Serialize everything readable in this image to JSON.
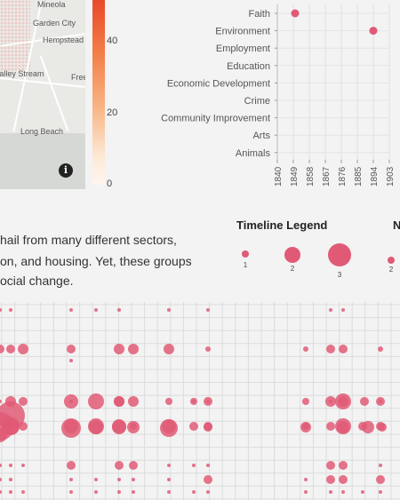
{
  "map": {
    "places": [
      "Mineola",
      "Garden City",
      "Hempstead",
      "Valley Stream",
      "Freeport",
      "Long Beach"
    ],
    "info_icon": "info-icon",
    "info_glyph": "i"
  },
  "scale": {
    "ticks": [
      "40",
      "20",
      "0"
    ],
    "colors": [
      "#e84a2a",
      "#fff6ee"
    ]
  },
  "chart_data": [
    {
      "type": "scatter",
      "title": "",
      "xlabel": "",
      "ylabel": "",
      "categories": [
        "Faith",
        "Environment",
        "Employment",
        "Education",
        "Economic Development",
        "Crime",
        "Community Improvement",
        "Arts",
        "Animals"
      ],
      "x_ticks": [
        "1840",
        "1849",
        "1858",
        "1867",
        "1876",
        "1885",
        "1894",
        "1903"
      ],
      "points": [
        {
          "category": "Faith",
          "x": 1850
        },
        {
          "category": "Environment",
          "x": 1894
        }
      ],
      "color": "#e05a76"
    },
    {
      "type": "scatter",
      "title": "",
      "note": "bubble grid, values read from circle sizes",
      "columns": 30,
      "rows": 12,
      "color": "#e05a76"
    }
  ],
  "legend": {
    "title": "Timeline Legend",
    "sizes": [
      "1",
      "2",
      "3"
    ],
    "next_title": "N",
    "next_value": "2"
  },
  "paragraph": {
    "line1": "hail from many different sectors,",
    "line2": "on, and housing. Yet, these groups",
    "line3": "ocial change."
  }
}
